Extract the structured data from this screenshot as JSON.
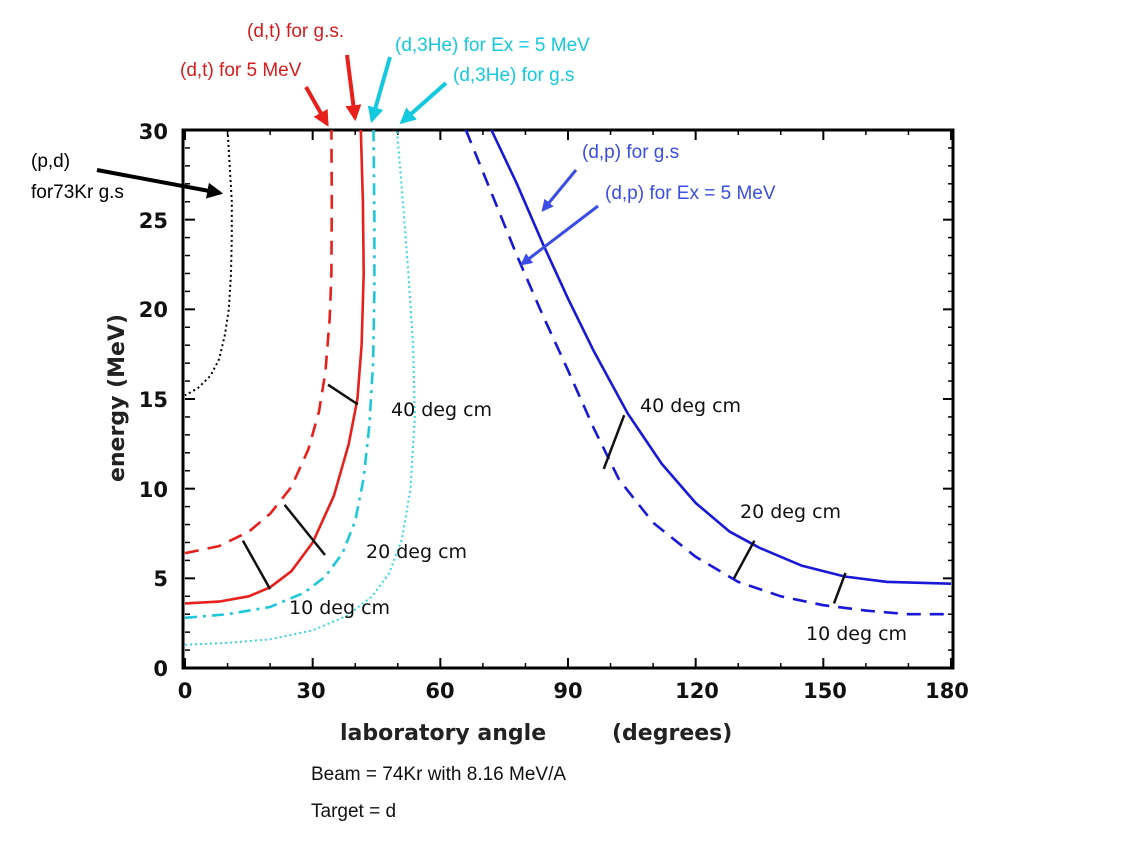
{
  "chart_data": {
    "type": "line",
    "title": "",
    "xlabel": "laboratory angle",
    "xlabel_units": "(degrees)",
    "ylabel": "energy (MeV)",
    "xlim": [
      0,
      180
    ],
    "ylim": [
      0,
      30
    ],
    "xticks": [
      "0",
      "30",
      "60",
      "90",
      "120",
      "150",
      "180"
    ],
    "yticks": [
      "0",
      "5",
      "10",
      "15",
      "20",
      "25",
      "30"
    ],
    "grid": false,
    "series": [
      {
        "name": "(p,d) for73Kr g.s",
        "color": "#000000",
        "style": "dotted",
        "points": [
          [
            10,
            30
          ],
          [
            10.5,
            28
          ],
          [
            11,
            26
          ],
          [
            11,
            24
          ],
          [
            10.8,
            22
          ],
          [
            10.3,
            20
          ],
          [
            9.4,
            18.6
          ],
          [
            8,
            17.2
          ],
          [
            6,
            16.3
          ],
          [
            3,
            15.6
          ],
          [
            0,
            15.2
          ]
        ]
      },
      {
        "name": "(d,t) for 5 MeV",
        "color": "#e8201c",
        "style": "dashed",
        "points": [
          [
            0,
            6.4
          ],
          [
            8,
            6.8
          ],
          [
            15,
            7.6
          ],
          [
            20,
            8.6
          ],
          [
            25,
            10.1
          ],
          [
            29,
            12.2
          ],
          [
            31.5,
            14.3
          ],
          [
            33,
            16.5
          ],
          [
            34,
            19.5
          ],
          [
            34.4,
            22
          ],
          [
            34.5,
            26
          ],
          [
            34.4,
            30
          ]
        ]
      },
      {
        "name": "(d,t) for g.s.",
        "color": "#e8201c",
        "style": "solid",
        "points": [
          [
            0,
            3.6
          ],
          [
            8,
            3.7
          ],
          [
            15,
            4
          ],
          [
            20,
            4.5
          ],
          [
            25,
            5.4
          ],
          [
            30,
            7
          ],
          [
            35,
            9.6
          ],
          [
            38.5,
            12.5
          ],
          [
            40.5,
            15
          ],
          [
            41.5,
            18
          ],
          [
            42,
            22
          ],
          [
            41.8,
            26
          ],
          [
            41.3,
            30
          ]
        ]
      },
      {
        "name": "(d,3He) for Ex = 5 MeV",
        "color": "#1ec8d8",
        "style": "dashdot",
        "points": [
          [
            0,
            2.8
          ],
          [
            10,
            3
          ],
          [
            20,
            3.4
          ],
          [
            28,
            4.2
          ],
          [
            33,
            5.1
          ],
          [
            37,
            6.4
          ],
          [
            40,
            8.2
          ],
          [
            42,
            10.6
          ],
          [
            43.3,
            13.5
          ],
          [
            44.2,
            17
          ],
          [
            44.5,
            21
          ],
          [
            44.5,
            25
          ],
          [
            44.3,
            30
          ]
        ]
      },
      {
        "name": "(d,3He) for g.s",
        "color": "#35d8e6",
        "style": "dotted",
        "points": [
          [
            0,
            1.3
          ],
          [
            10,
            1.4
          ],
          [
            20,
            1.6
          ],
          [
            30,
            2.1
          ],
          [
            38,
            2.9
          ],
          [
            44,
            4
          ],
          [
            48,
            5.3
          ],
          [
            51,
            7.2
          ],
          [
            53,
            10
          ],
          [
            54,
            14
          ],
          [
            53.6,
            18
          ],
          [
            52.5,
            22
          ],
          [
            51.2,
            26
          ],
          [
            49.8,
            30
          ]
        ]
      },
      {
        "name": "(d,p) for g.s",
        "color": "#1818d8",
        "style": "solid",
        "points": [
          [
            72,
            30
          ],
          [
            78,
            27
          ],
          [
            84,
            23.7
          ],
          [
            90,
            20.6
          ],
          [
            96,
            17.7
          ],
          [
            104,
            14.2
          ],
          [
            112,
            11.4
          ],
          [
            120,
            9.2
          ],
          [
            128,
            7.6
          ],
          [
            135,
            6.7
          ],
          [
            145,
            5.7
          ],
          [
            155,
            5.1
          ],
          [
            165,
            4.8
          ],
          [
            180,
            4.7
          ]
        ]
      },
      {
        "name": "(d,p) for Ex = 5 MeV",
        "color": "#1818d8",
        "style": "dashed",
        "points": [
          [
            66,
            30
          ],
          [
            72,
            26.5
          ],
          [
            78,
            23
          ],
          [
            84,
            19.7
          ],
          [
            90,
            16.6
          ],
          [
            96,
            13.4
          ],
          [
            102,
            10.5
          ],
          [
            110,
            8.1
          ],
          [
            120,
            6.2
          ],
          [
            130,
            4.8
          ],
          [
            140,
            4
          ],
          [
            150,
            3.5
          ],
          [
            160,
            3.2
          ],
          [
            170,
            3
          ],
          [
            180,
            3
          ]
        ]
      }
    ],
    "cm_markers": [
      {
        "from": [
          33.6,
          15.8
        ],
        "to": [
          40.6,
          14.7
        ]
      },
      {
        "from": [
          23.4,
          9.1
        ],
        "to": [
          32.9,
          6.3
        ]
      },
      {
        "from": [
          13.6,
          7.1
        ],
        "to": [
          20,
          4.4
        ]
      },
      {
        "from": [
          103.2,
          14.1
        ],
        "to": [
          98.4,
          11.1
        ]
      },
      {
        "from": [
          133.8,
          7.1
        ],
        "to": [
          129,
          5
        ]
      },
      {
        "from": [
          155.2,
          5.3
        ],
        "to": [
          152.5,
          3.6
        ]
      }
    ],
    "cm_labels": [
      {
        "text": "40 deg cm",
        "x": 49,
        "y": 14.2
      },
      {
        "text": "20 deg cm",
        "x": 43,
        "y": 6.4
      },
      {
        "text": "10 deg cm",
        "x": 25,
        "y": 3.1
      },
      {
        "text": "40 deg cm",
        "x": 106,
        "y": 14.7
      },
      {
        "text": "20 deg cm",
        "x": 137,
        "y": 8.7
      },
      {
        "text": "10 deg cm",
        "x": 151,
        "y": 1.8
      }
    ],
    "annotations": [
      {
        "text": "(d,t) for g.s.",
        "color": "#d61c1c",
        "target": [
          40,
          30.4
        ]
      },
      {
        "text": "(d,t) for 5 MeV",
        "color": "#d61c1c",
        "target": [
          33,
          30.4
        ]
      },
      {
        "text": "(d,3He) for Ex = 5 MeV",
        "color": "#14c9de",
        "target": [
          44,
          30.4
        ]
      },
      {
        "text": "(d,3He) for g.s",
        "color": "#14c9de",
        "target": [
          49,
          30.4
        ]
      },
      {
        "text": "(d,p) for g.s",
        "color": "#3a4de6",
        "target": [
          83,
          26.6
        ]
      },
      {
        "text": "(d,p) for Ex = 5 MeV",
        "color": "#3a4de6",
        "target": [
          78,
          22.4
        ]
      },
      {
        "text": "(p,d)",
        "color": "#000000",
        "target": [
          9,
          26.3
        ]
      },
      {
        "text": "for73Kr g.s",
        "color": "#000000"
      }
    ]
  },
  "caption": {
    "beam": "Beam = 74Kr with 8.16 MeV/A",
    "target": "Target = d"
  }
}
